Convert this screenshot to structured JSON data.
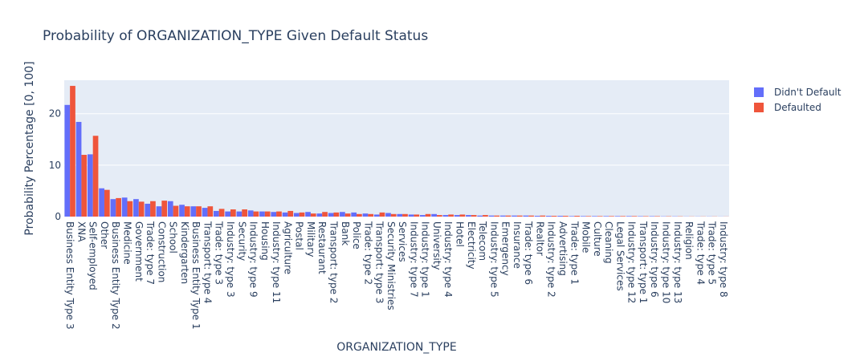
{
  "chart_data": {
    "type": "bar",
    "title": "Probability of ORGANIZATION_TYPE Given Default Status",
    "xlabel": "ORGANIZATION_TYPE",
    "ylabel": "Probability Percentage [0, 100]",
    "ylim": [
      0,
      26.5
    ],
    "yticks": [
      0,
      10,
      20
    ],
    "grid": true,
    "legend_position": "top-right",
    "colors": {
      "plot_bg": "#e5ecf6",
      "grid": "#ffffff",
      "text": "#2a3f5f"
    },
    "categories": [
      "Business Entity Type 3",
      "XNA",
      "Self-employed",
      "Other",
      "Business Entity Type 2",
      "Medicine",
      "Government",
      "Trade: type 7",
      "Construction",
      "School",
      "Kindergarten",
      "Business Entity Type 1",
      "Transport: type 4",
      "Trade: type 3",
      "Industry: type 3",
      "Security",
      "Industry: type 9",
      "Housing",
      "Industry: type 11",
      "Agriculture",
      "Postal",
      "Military",
      "Restaurant",
      "Transport: type 2",
      "Bank",
      "Police",
      "Trade: type 2",
      "Transport: type 3",
      "Security Ministries",
      "Services",
      "Industry: type 7",
      "Industry: type 1",
      "University",
      "Industry: type 4",
      "Hotel",
      "Electricity",
      "Telecom",
      "Industry: type 5",
      "Emergency",
      "Insurance",
      "Trade: type 6",
      "Realtor",
      "Industry: type 2",
      "Advertising",
      "Trade: type 1",
      "Mobile",
      "Culture",
      "Cleaning",
      "Legal Services",
      "Industry: type 12",
      "Transport: type 1",
      "Industry: type 6",
      "Industry: type 10",
      "Industry: type 13",
      "Religion",
      "Trade: type 4",
      "Trade: type 5",
      "Industry: type 8"
    ],
    "series": [
      {
        "name": "Didn't Default",
        "color": "#636efa",
        "values": [
          21.7,
          18.4,
          12.1,
          5.5,
          3.4,
          3.7,
          3.4,
          2.5,
          2.0,
          3.0,
          2.3,
          2.0,
          1.7,
          1.1,
          1.0,
          1.0,
          1.2,
          1.0,
          0.9,
          0.8,
          0.7,
          0.9,
          0.6,
          0.7,
          0.9,
          0.8,
          0.6,
          0.4,
          0.7,
          0.5,
          0.4,
          0.3,
          0.5,
          0.3,
          0.3,
          0.3,
          0.2,
          0.2,
          0.2,
          0.2,
          0.2,
          0.15,
          0.15,
          0.15,
          0.1,
          0.1,
          0.1,
          0.1,
          0.1,
          0.1,
          0.08,
          0.08,
          0.05,
          0.05,
          0.03,
          0.03,
          0.03,
          0.02
        ]
      },
      {
        "name": "Defaulted",
        "color": "#ef553b",
        "values": [
          25.4,
          12.0,
          15.7,
          5.2,
          3.6,
          3.0,
          2.9,
          3.0,
          3.1,
          2.1,
          2.0,
          2.0,
          2.0,
          1.5,
          1.4,
          1.4,
          1.0,
          1.0,
          1.0,
          1.1,
          0.8,
          0.6,
          0.9,
          0.8,
          0.6,
          0.5,
          0.5,
          0.8,
          0.5,
          0.5,
          0.4,
          0.5,
          0.3,
          0.4,
          0.4,
          0.3,
          0.3,
          0.2,
          0.2,
          0.2,
          0.2,
          0.2,
          0.15,
          0.15,
          0.15,
          0.1,
          0.1,
          0.1,
          0.1,
          0.1,
          0.08,
          0.08,
          0.06,
          0.05,
          0.03,
          0.03,
          0.03,
          0.02
        ]
      }
    ]
  }
}
